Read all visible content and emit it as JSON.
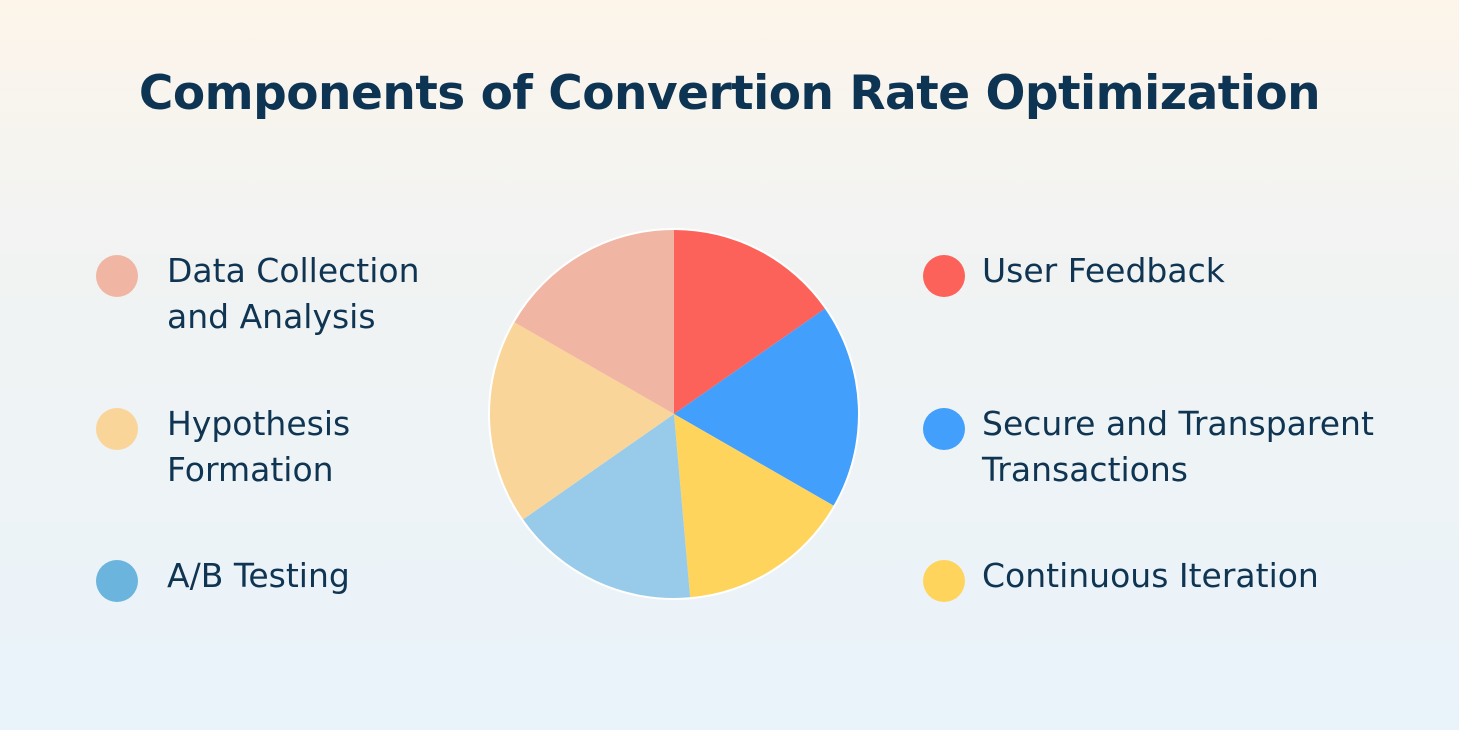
{
  "title": "Components of Convertion Rate Optimization",
  "chart_data": {
    "type": "pie",
    "title": "Components of Convertion Rate Optimization",
    "legend_position": "left-and-right",
    "slices": [
      {
        "label": "User Feedback",
        "value": 15.3,
        "color": "#fc625a"
      },
      {
        "label": "Secure and Transparent Transactions",
        "value": 18.0,
        "color": "#429ffb"
      },
      {
        "label": "Continuous Iteration",
        "value": 15.3,
        "color": "#fed45c"
      },
      {
        "label": "A/B Testing",
        "value": 16.7,
        "color": "#98cbea"
      },
      {
        "label": "Hypothesis Formation",
        "value": 18.0,
        "color": "#fad59a"
      },
      {
        "label": "Data Collection and Analysis",
        "value": 16.7,
        "color": "#f0b6a3"
      }
    ]
  },
  "legend": {
    "left": [
      {
        "label": "Data Collection\nand Analysis",
        "color": "#f0b6a3"
      },
      {
        "label": "Hypothesis\nFormation",
        "color": "#fad59a"
      },
      {
        "label": "A/B Testing",
        "color": "#6ab4dd"
      }
    ],
    "right": [
      {
        "label": "User Feedback",
        "color": "#fc625a"
      },
      {
        "label": "Secure and Transparent\nTransactions",
        "color": "#429ffb"
      },
      {
        "label": "Continuous Iteration",
        "color": "#fed45c"
      }
    ]
  }
}
